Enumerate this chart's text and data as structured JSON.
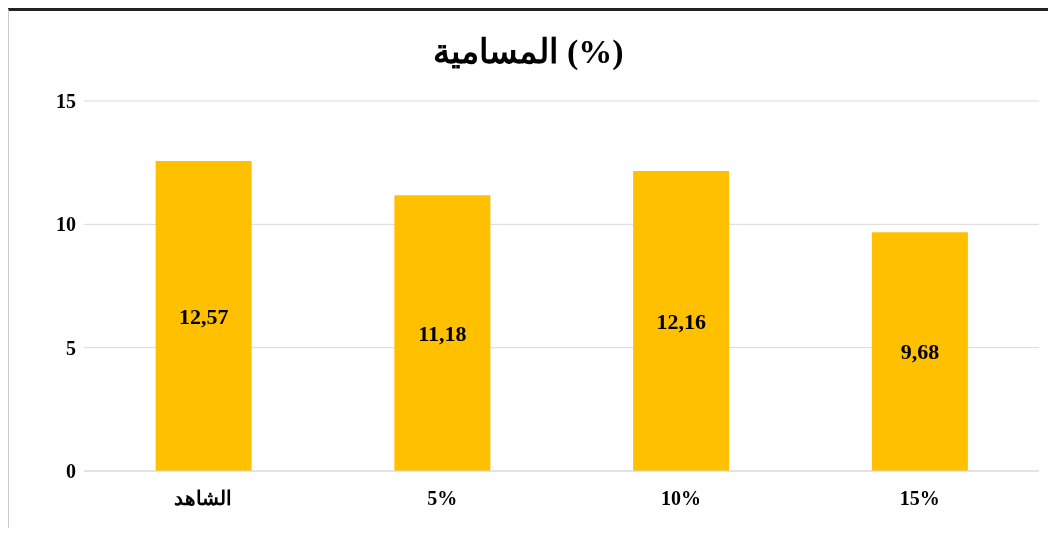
{
  "chart_data": {
    "type": "bar",
    "title": "المسامية (%)",
    "categories": [
      "الشاهد",
      "5%",
      "10%",
      "15%"
    ],
    "values": [
      12.57,
      11.18,
      12.16,
      9.68
    ],
    "value_labels": [
      "12,57",
      "11,18",
      "12,16",
      "9,68"
    ],
    "color": "#ffc000",
    "ylim": [
      0,
      15
    ],
    "yticks": [
      0,
      5,
      10,
      15
    ],
    "grid": "y"
  }
}
